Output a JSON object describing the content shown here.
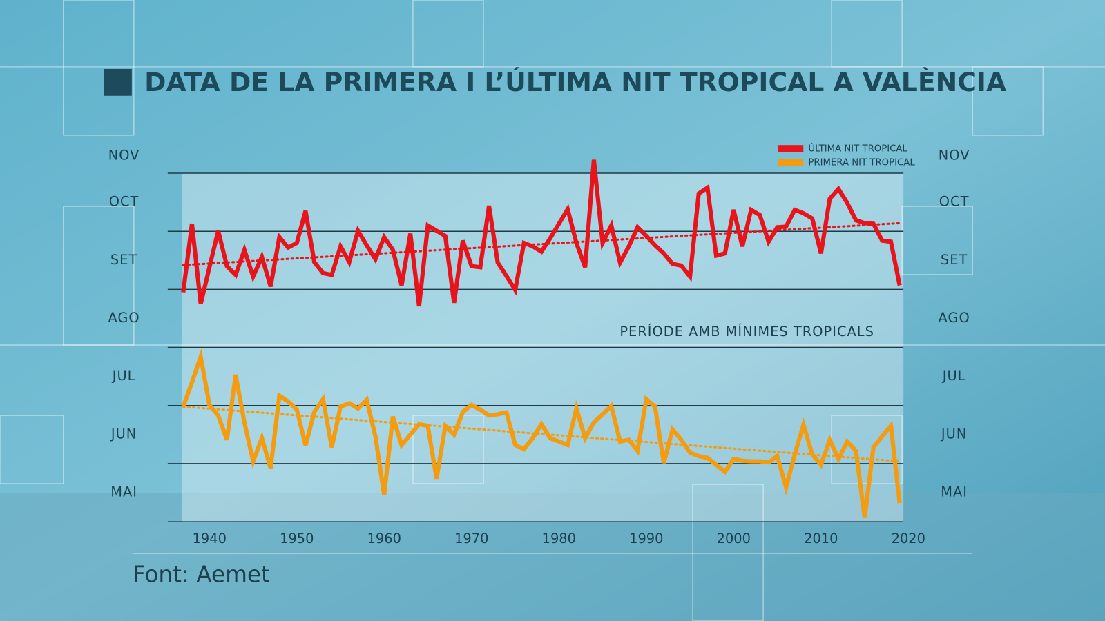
{
  "chart_data": {
    "type": "line",
    "title": "DATA DE LA PRIMERA I L’ÚLTIMA NIT TROPICAL A VALÈNCIA",
    "annotation": "PERÍODE AMB MÍNIMES TROPICALS",
    "source": "Font: Aemet",
    "x": [
      1937,
      1938,
      1939,
      1940,
      1941,
      1942,
      1943,
      1944,
      1945,
      1946,
      1947,
      1948,
      1949,
      1950,
      1951,
      1952,
      1953,
      1954,
      1955,
      1956,
      1957,
      1958,
      1959,
      1960,
      1961,
      1962,
      1963,
      1964,
      1965,
      1966,
      1967,
      1968,
      1969,
      1970,
      1971,
      1972,
      1973,
      1974,
      1975,
      1976,
      1977,
      1978,
      1979,
      1980,
      1981,
      1982,
      1983,
      1984,
      1985,
      1986,
      1987,
      1988,
      1989,
      1990,
      1991,
      1992,
      1993,
      1994,
      1995,
      1996,
      1997,
      1998,
      1999,
      2000,
      2001,
      2002,
      2003,
      2004,
      2005,
      2006,
      2007,
      2008,
      2009,
      2010,
      2011,
      2012,
      2013,
      2014,
      2015,
      2016,
      2017,
      2018,
      2019
    ],
    "series": [
      {
        "name": "ÚLTIMA NIT TROPICAL",
        "color": "#e8141b",
        "values": [
          8.95,
          10.13,
          8.75,
          9.38,
          10.01,
          9.4,
          9.25,
          9.68,
          9.22,
          9.56,
          9.05,
          9.9,
          9.72,
          9.8,
          10.35,
          9.47,
          9.28,
          9.25,
          9.74,
          9.47,
          10.01,
          9.76,
          9.52,
          9.9,
          9.68,
          9.07,
          9.96,
          8.71,
          10.1,
          10.01,
          9.92,
          8.77,
          9.84,
          9.4,
          9.38,
          10.44,
          9.46,
          9.23,
          8.99,
          9.8,
          9.74,
          9.65,
          9.88,
          10.13,
          10.38,
          9.8,
          9.38,
          11.23,
          9.8,
          10.1,
          9.46,
          9.74,
          10.07,
          9.92,
          9.76,
          9.62,
          9.44,
          9.41,
          9.22,
          10.65,
          10.75,
          9.58,
          9.62,
          10.37,
          9.74,
          10.37,
          10.28,
          9.82,
          10.07,
          10.08,
          10.37,
          10.31,
          10.22,
          9.62,
          10.56,
          10.73,
          10.49,
          10.19,
          10.14,
          10.13,
          9.84,
          9.82,
          9.07
        ]
      },
      {
        "name": "PRIMERA NIT TROPICAL",
        "color": "#f39c12",
        "values": [
          6.98,
          7.4,
          7.84,
          7.01,
          6.83,
          6.41,
          7.53,
          6.71,
          6.04,
          6.44,
          5.92,
          7.17,
          7.07,
          6.93,
          6.31,
          6.89,
          7.11,
          6.28,
          6.98,
          7.04,
          6.95,
          7.1,
          6.47,
          5.46,
          6.81,
          6.32,
          6.5,
          6.68,
          6.65,
          5.74,
          6.65,
          6.5,
          6.89,
          7.01,
          6.93,
          6.83,
          6.85,
          6.88,
          6.32,
          6.25,
          6.44,
          6.68,
          6.44,
          6.38,
          6.32,
          6.95,
          6.44,
          6.71,
          6.85,
          6.99,
          6.38,
          6.41,
          6.22,
          7.11,
          6.98,
          6.01,
          6.59,
          6.41,
          6.19,
          6.13,
          6.1,
          5.98,
          5.86,
          6.08,
          6.05,
          6.04,
          6.04,
          6.02,
          6.13,
          5.59,
          6.16,
          6.67,
          6.16,
          5.98,
          6.41,
          6.08,
          6.38,
          6.22,
          5.07,
          6.28,
          6.47,
          6.65,
          5.32
        ]
      }
    ],
    "trendlines": [
      {
        "color": "#e8141b",
        "x": [
          1937,
          2019
        ],
        "values": [
          9.42,
          10.14
        ]
      },
      {
        "color": "#f39c12",
        "x": [
          1937,
          2019
        ],
        "values": [
          6.98,
          6.04
        ]
      }
    ],
    "xlim": [
      1937,
      2020
    ],
    "xticks": [
      1940,
      1950,
      1960,
      1970,
      1980,
      1990,
      2000,
      2010,
      2020
    ],
    "ylim": [
      5,
      11.5
    ],
    "yticks": [
      {
        "value": 5.5,
        "label": "MAI"
      },
      {
        "value": 6.5,
        "label": "JUN"
      },
      {
        "value": 7.5,
        "label": "JUL"
      },
      {
        "value": 8.5,
        "label": "AGO"
      },
      {
        "value": 9.5,
        "label": "SET"
      },
      {
        "value": 10.5,
        "label": "OCT"
      },
      {
        "value": 11.3,
        "label": "NOV"
      }
    ],
    "ygrid": [
      5,
      6,
      7,
      8,
      9,
      10,
      11
    ]
  }
}
